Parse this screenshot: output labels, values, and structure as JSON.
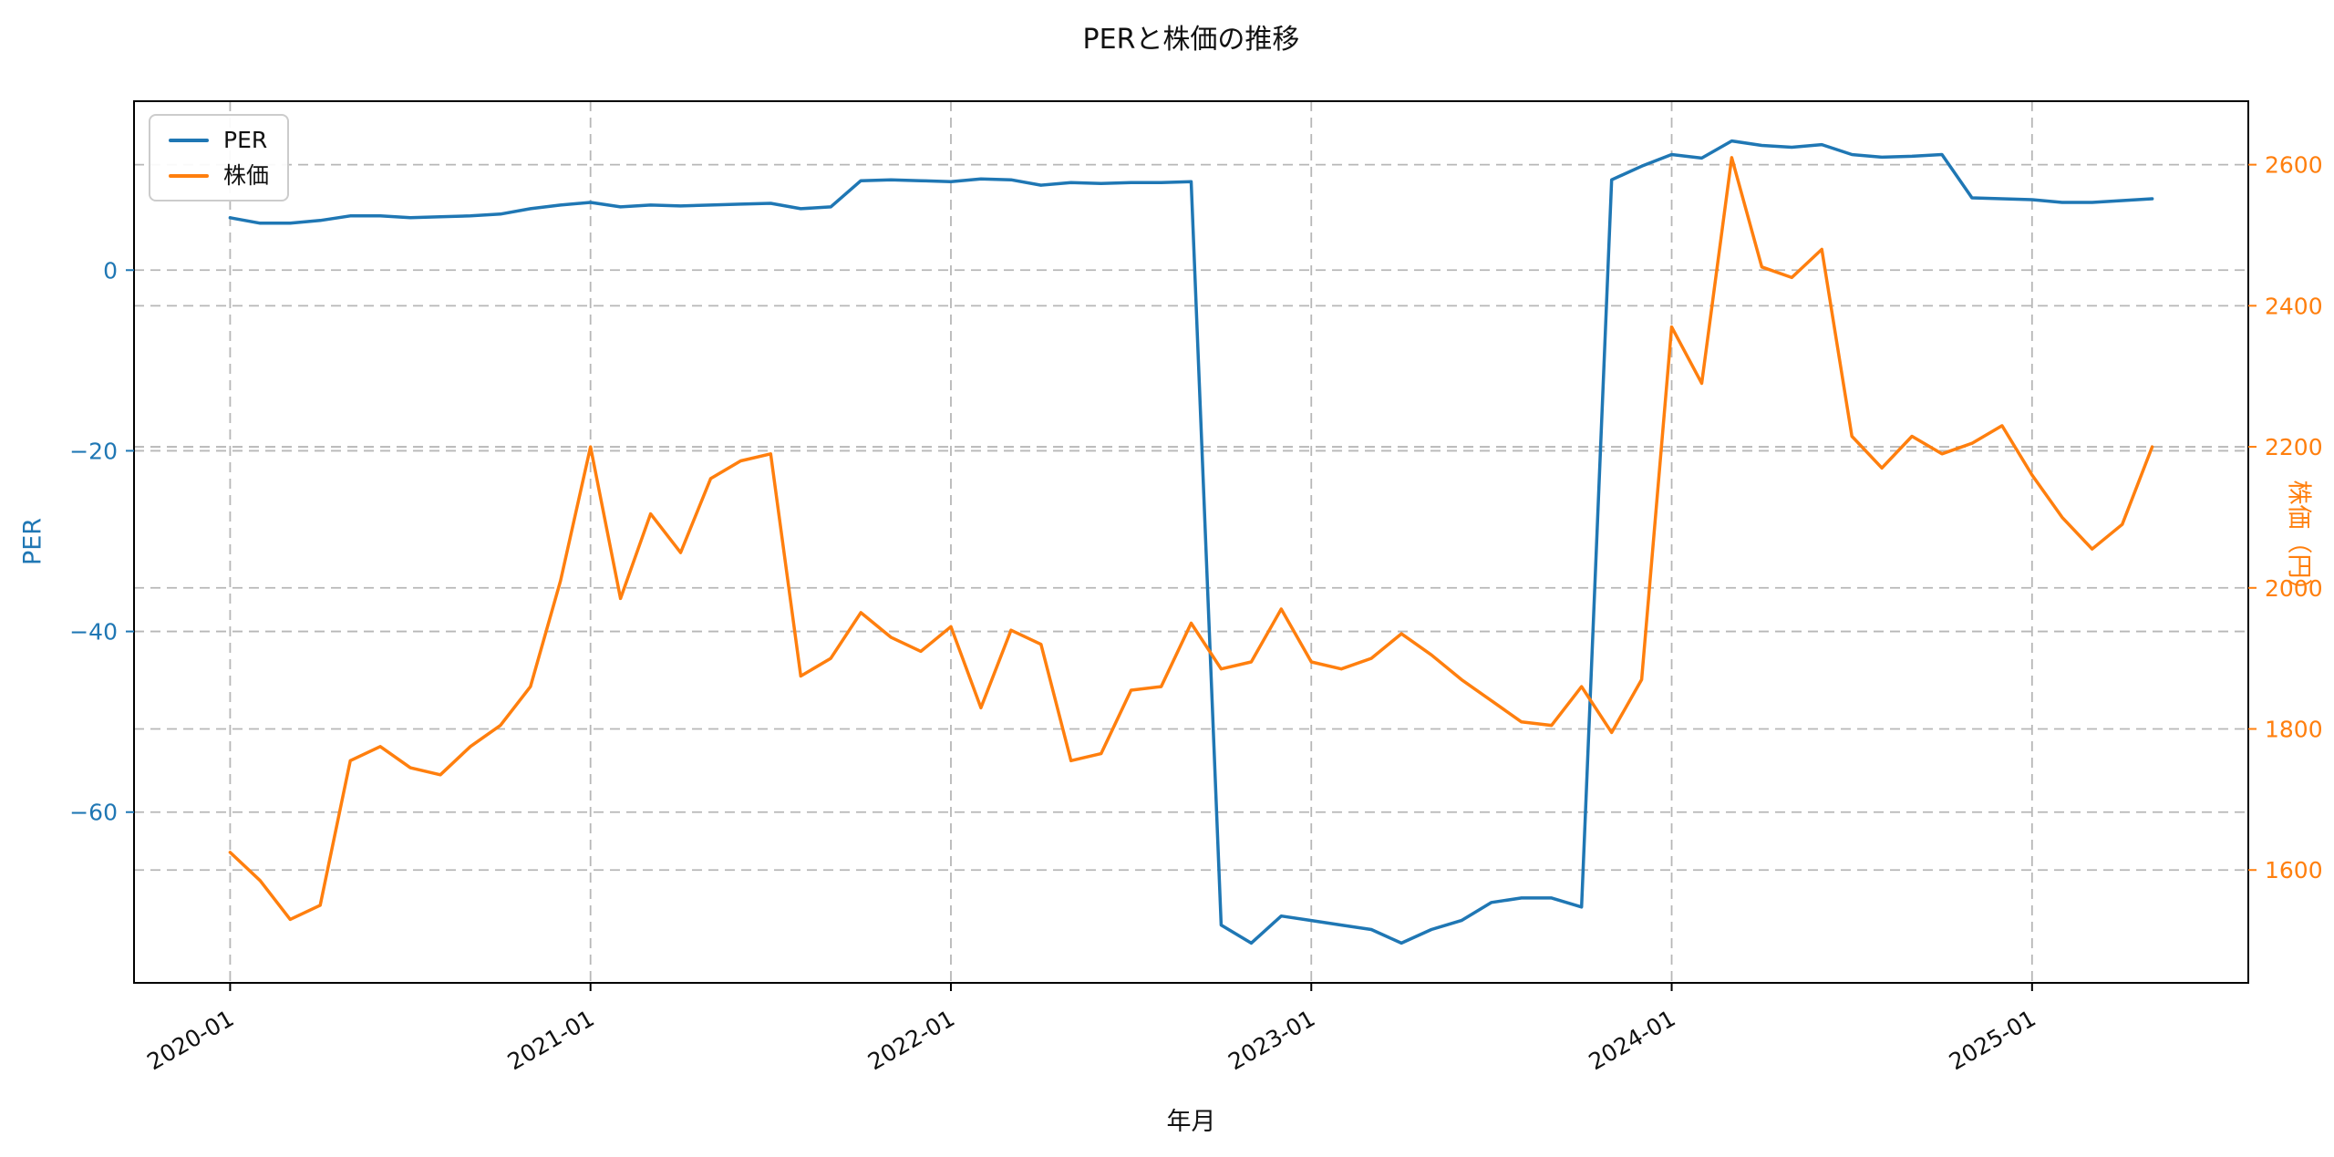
{
  "colors": {
    "per": "#1f77b4",
    "price": "#ff7f0e",
    "grid": "#b0b0b0",
    "spine": "#000000",
    "background": "#ffffff"
  },
  "chart_data": {
    "type": "line",
    "title": "PERと株価の推移",
    "xlabel": "年月",
    "ylabel_left": "PER",
    "ylabel_right": "株価（円）",
    "grid": true,
    "legend_position": "upper-left",
    "x": [
      "2020-01",
      "2020-02",
      "2020-03",
      "2020-04",
      "2020-05",
      "2020-06",
      "2020-07",
      "2020-08",
      "2020-09",
      "2020-10",
      "2020-11",
      "2020-12",
      "2021-01",
      "2021-02",
      "2021-03",
      "2021-04",
      "2021-05",
      "2021-06",
      "2021-07",
      "2021-08",
      "2021-09",
      "2021-10",
      "2021-11",
      "2021-12",
      "2022-01",
      "2022-02",
      "2022-03",
      "2022-04",
      "2022-05",
      "2022-06",
      "2022-07",
      "2022-08",
      "2022-09",
      "2022-10",
      "2022-11",
      "2022-12",
      "2023-01",
      "2023-02",
      "2023-03",
      "2023-04",
      "2023-05",
      "2023-06",
      "2023-07",
      "2023-08",
      "2023-09",
      "2023-10",
      "2023-11",
      "2023-12",
      "2024-01",
      "2024-02",
      "2024-03",
      "2024-04",
      "2024-05",
      "2024-06",
      "2024-07",
      "2024-08",
      "2024-09",
      "2024-10",
      "2024-11",
      "2024-12",
      "2025-01",
      "2025-02",
      "2025-03",
      "2025-04",
      "2025-05"
    ],
    "series": [
      {
        "name": "PER",
        "axis": "left",
        "color": "#1f77b4",
        "values": [
          5.8,
          5.2,
          5.2,
          5.5,
          6.0,
          6.0,
          5.8,
          5.9,
          6.0,
          6.2,
          6.8,
          7.2,
          7.5,
          7.0,
          7.2,
          7.1,
          7.2,
          7.3,
          7.4,
          6.8,
          7.0,
          9.9,
          10.0,
          9.9,
          9.8,
          10.1,
          10.0,
          9.4,
          9.7,
          9.6,
          9.7,
          9.7,
          9.8,
          -72.5,
          -74.5,
          -71.5,
          -72.0,
          -72.5,
          -73.0,
          -74.5,
          -73.0,
          -72.0,
          -70.0,
          -69.5,
          -69.5,
          -70.5,
          10.0,
          11.5,
          12.8,
          12.4,
          14.3,
          13.8,
          13.6,
          13.9,
          12.8,
          12.5,
          12.6,
          12.8,
          8.0,
          7.9,
          7.8,
          7.5,
          7.5,
          7.7,
          7.9
        ]
      },
      {
        "name": "株価",
        "axis": "right",
        "color": "#ff7f0e",
        "values": [
          1625,
          1585,
          1530,
          1550,
          1755,
          1775,
          1745,
          1735,
          1775,
          1805,
          1860,
          2010,
          2200,
          1985,
          2105,
          2050,
          2155,
          2180,
          2190,
          1875,
          1900,
          1965,
          1930,
          1910,
          1945,
          1830,
          1940,
          1920,
          1755,
          1765,
          1855,
          1860,
          1950,
          1885,
          1895,
          1970,
          1895,
          1885,
          1900,
          1935,
          1905,
          1870,
          1840,
          1810,
          1805,
          1860,
          1795,
          1870,
          2370,
          2290,
          2610,
          2455,
          2440,
          2480,
          2215,
          2170,
          2215,
          2190,
          2205,
          2230,
          2160,
          2100,
          2055,
          2090,
          2200
        ]
      }
    ],
    "x_ticks": {
      "values": [
        0,
        12,
        24,
        36,
        48,
        60
      ],
      "labels": [
        "2020-01",
        "2021-01",
        "2022-01",
        "2023-01",
        "2024-01",
        "2025-01"
      ]
    },
    "y_left": {
      "tick_values": [
        0,
        -20,
        -40,
        -60
      ],
      "tick_labels": [
        "0",
        "−20",
        "−40",
        "−60"
      ],
      "lim": [
        -78.9,
        18.7
      ]
    },
    "y_right": {
      "tick_values": [
        1600,
        1800,
        2000,
        2200,
        2400,
        2600
      ],
      "tick_labels": [
        "1600",
        "1800",
        "2000",
        "2200",
        "2400",
        "2600"
      ],
      "lim": [
        1440,
        2690
      ]
    }
  }
}
